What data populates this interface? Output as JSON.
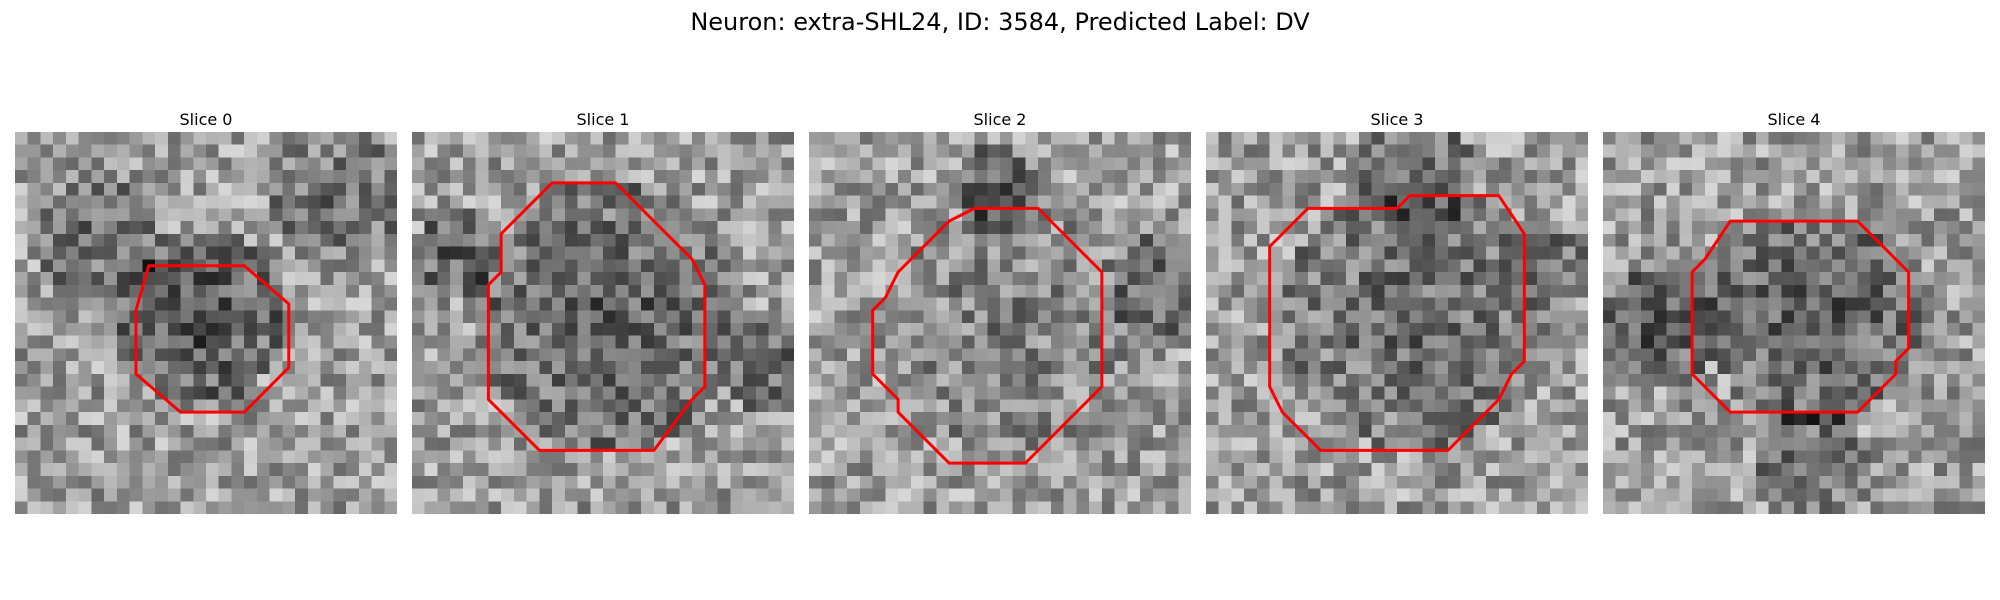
{
  "figure": {
    "title": "Neuron: extra-SHL24, ID: 3584, Predicted Label: DV",
    "outline_color": "#ff0000",
    "panels": [
      {
        "title": "Slice 0"
      },
      {
        "title": "Slice 1"
      },
      {
        "title": "Slice 2"
      },
      {
        "title": "Slice 3"
      },
      {
        "title": "Slice 4"
      }
    ]
  }
}
